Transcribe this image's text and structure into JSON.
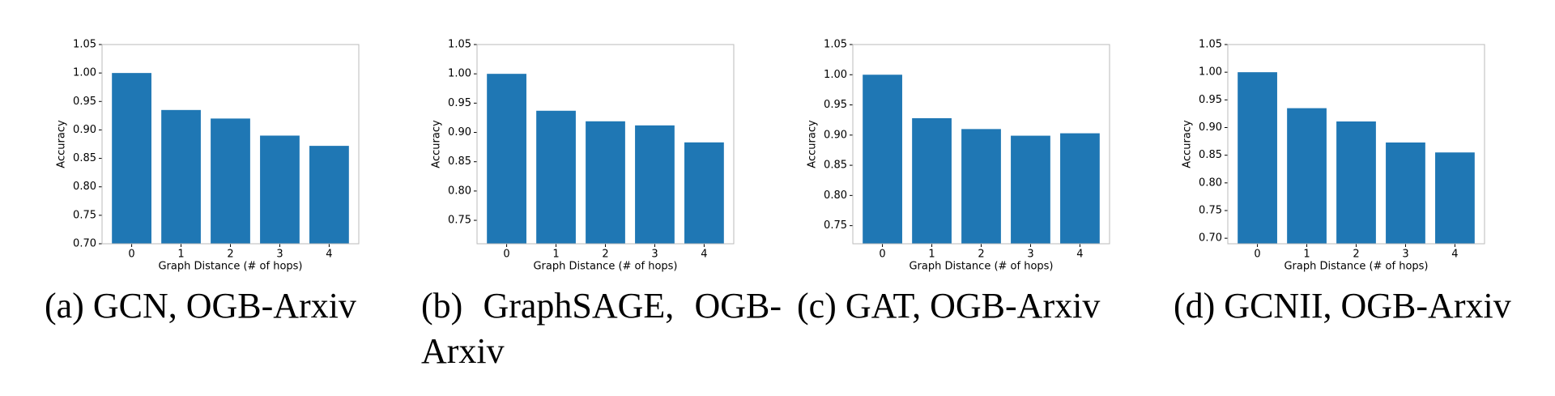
{
  "chart_data": [
    {
      "type": "bar",
      "caption": "(a) GCN, OGB-Arxiv",
      "xlabel": "Graph Distance (# of hops)",
      "ylabel": "Accuracy",
      "color": "#1f77b4",
      "categories": [
        "0",
        "1",
        "2",
        "3",
        "4"
      ],
      "values": [
        1.0,
        0.935,
        0.92,
        0.89,
        0.872
      ],
      "ylim": [
        0.7,
        1.05
      ],
      "yticks": [
        {
          "value": 0.7,
          "label": "0.70"
        },
        0.75,
        {
          "value": 0.8,
          "label": "0.80"
        },
        0.85,
        {
          "value": 0.9,
          "label": "0.90"
        },
        0.95,
        {
          "value": 1.0,
          "label": "1.00"
        },
        1.05
      ]
    },
    {
      "type": "bar",
      "caption": "(b) GraphSAGE, OGB-Arxiv",
      "xlabel": "Graph Distance (# of hops)",
      "ylabel": "Accuracy",
      "color": "#1f77b4",
      "categories": [
        "0",
        "1",
        "2",
        "3",
        "4"
      ],
      "values": [
        1.0,
        0.937,
        0.919,
        0.912,
        0.883
      ],
      "ylim": [
        0.71,
        1.05
      ],
      "yticks": [
        0.75,
        {
          "value": 0.8,
          "label": "0.80"
        },
        0.85,
        {
          "value": 0.9,
          "label": "0.90"
        },
        0.95,
        {
          "value": 1.0,
          "label": "1.00"
        },
        1.05
      ]
    },
    {
      "type": "bar",
      "caption": "(c) GAT, OGB-Arxiv",
      "xlabel": "Graph Distance (# of hops)",
      "ylabel": "Accuracy",
      "color": "#1f77b4",
      "categories": [
        "0",
        "1",
        "2",
        "3",
        "4"
      ],
      "values": [
        1.0,
        0.928,
        0.91,
        0.899,
        0.903
      ],
      "ylim": [
        0.72,
        1.05
      ],
      "yticks": [
        0.75,
        {
          "value": 0.8,
          "label": "0.80"
        },
        0.85,
        {
          "value": 0.9,
          "label": "0.90"
        },
        0.95,
        {
          "value": 1.0,
          "label": "1.00"
        },
        1.05
      ]
    },
    {
      "type": "bar",
      "caption": "(d) GCNII, OGB-Arxiv",
      "xlabel": "Graph Distance (# of hops)",
      "ylabel": "Accuracy",
      "color": "#1f77b4",
      "categories": [
        "0",
        "1",
        "2",
        "3",
        "4"
      ],
      "values": [
        1.0,
        0.935,
        0.911,
        0.873,
        0.855
      ],
      "ylim": [
        0.69,
        1.05
      ],
      "yticks": [
        {
          "value": 0.7,
          "label": "0.70"
        },
        0.75,
        {
          "value": 0.8,
          "label": "0.80"
        },
        0.85,
        {
          "value": 0.9,
          "label": "0.90"
        },
        0.95,
        {
          "value": 1.0,
          "label": "1.00"
        },
        1.05
      ]
    }
  ]
}
